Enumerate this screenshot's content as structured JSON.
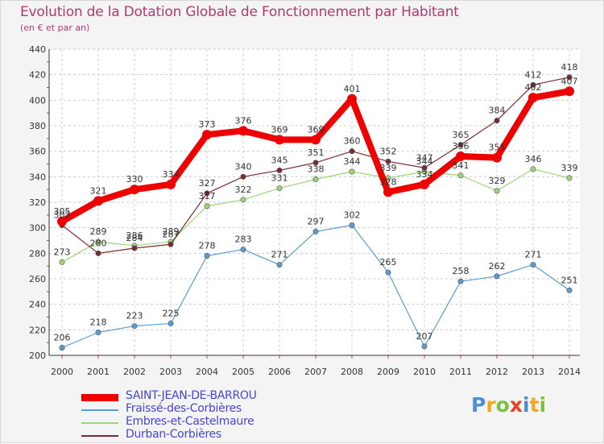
{
  "title": "Evolution de la Dotation Globale de Fonctionnement par Habitant",
  "subtitle": "(en € et par an)",
  "chart_data": {
    "type": "line",
    "title": "Evolution de la Dotation Globale de Fonctionnement par Habitant",
    "subtitle": "(en € et par an)",
    "xlabel": "",
    "ylabel": "",
    "ylim": [
      200,
      440
    ],
    "yticks": [
      200,
      220,
      240,
      260,
      280,
      300,
      320,
      340,
      360,
      380,
      400,
      420,
      440
    ],
    "x": [
      "2000",
      "2001",
      "2002",
      "2003",
      "2004",
      "2005",
      "2006",
      "2007",
      "2008",
      "2009",
      "2010",
      "2011",
      "2012",
      "2013",
      "2014"
    ],
    "grid": true,
    "legend_position": "bottom-left",
    "series": [
      {
        "name": "SAINT-JEAN-DE-BARROU",
        "color": "#ee0000",
        "values": [
          305,
          321,
          330,
          334,
          373,
          376,
          369,
          369,
          401,
          328,
          334,
          356,
          355,
          402,
          407
        ]
      },
      {
        "name": "Fraissé-des-Corbières",
        "color": "#5b9bd0",
        "values": [
          206,
          218,
          223,
          225,
          278,
          283,
          271,
          297,
          302,
          265,
          207,
          258,
          262,
          271,
          251
        ]
      },
      {
        "name": "Embres-et-Castelmaure",
        "color": "#9ed47a",
        "values": [
          273,
          289,
          286,
          289,
          317,
          322,
          331,
          338,
          344,
          339,
          344,
          341,
          329,
          346,
          339
        ]
      },
      {
        "name": "Durban-Corbières",
        "color": "#7a2a32",
        "values": [
          302,
          280,
          284,
          287,
          327,
          340,
          345,
          351,
          360,
          352,
          347,
          365,
          384,
          412,
          418
        ]
      }
    ]
  },
  "legend": {
    "items": [
      {
        "label": "SAINT-JEAN-DE-BARROU",
        "color": "#ee0000",
        "text_color": "#4646d2"
      },
      {
        "label": "Fraissé-des-Corbières",
        "color": "#5b9bd0",
        "text_color": "#4646d2"
      },
      {
        "label": "Embres-et-Castelmaure",
        "color": "#9ed47a",
        "text_color": "#4646d2"
      },
      {
        "label": "Durban-Corbières",
        "color": "#7a2a32",
        "text_color": "#4646d2"
      }
    ]
  },
  "logo": {
    "text": "Proxiti",
    "letter_colors": [
      "#4c8fd2",
      "#f5a623",
      "#7ac142",
      "#e8402a",
      "#4c8fd2",
      "#f5a623",
      "#7ac142"
    ]
  }
}
